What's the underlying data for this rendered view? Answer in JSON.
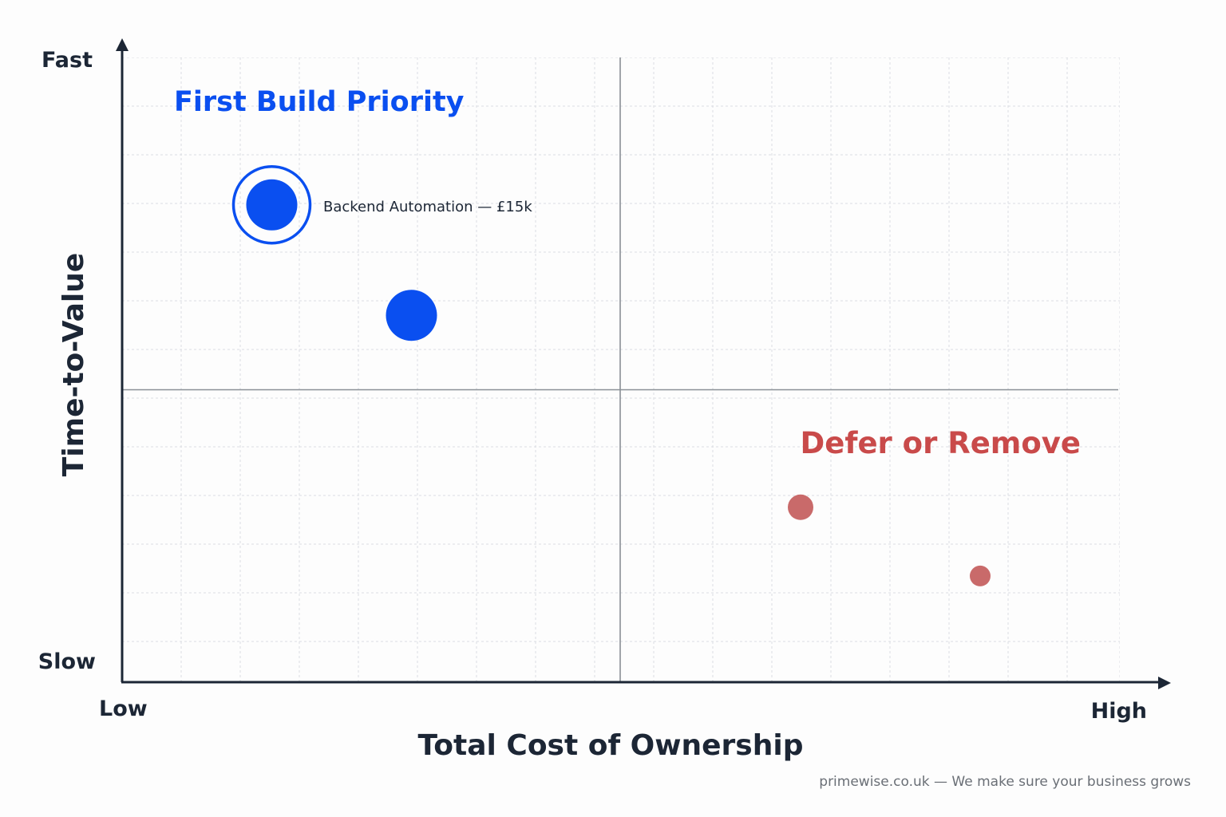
{
  "chart_data": {
    "type": "scatter",
    "xlabel": "Total Cost of Ownership",
    "ylabel": "Time-to-Value",
    "x_axis_ends": {
      "low": "Low",
      "high": "High"
    },
    "y_axis_ends": {
      "low": "Slow",
      "high": "Fast"
    },
    "xlim": [
      0,
      10
    ],
    "ylim": [
      0,
      10
    ],
    "grid": true,
    "quadrant_dividers": {
      "x": 5,
      "y": 5
    },
    "quadrant_labels": [
      {
        "text": "First Build Priority",
        "quadrant": "top-left",
        "color": "#0a4ff0"
      },
      {
        "text": "Defer or Remove",
        "quadrant": "bottom-right",
        "color": "#c94a4a"
      }
    ],
    "points": [
      {
        "x": 1.5,
        "y": 7.5,
        "size": "large",
        "color": "#0a4ff0",
        "highlighted": true,
        "label": "Backend Automation — £15k"
      },
      {
        "x": 2.9,
        "y": 6.0,
        "size": "large",
        "color": "#0a4ff0",
        "highlighted": false,
        "label": ""
      },
      {
        "x": 6.8,
        "y": 2.8,
        "size": "small",
        "color": "#c96a6a",
        "highlighted": false,
        "label": ""
      },
      {
        "x": 8.6,
        "y": 1.7,
        "size": "smaller",
        "color": "#c96a6a",
        "highlighted": false,
        "label": ""
      }
    ]
  },
  "footer": {
    "text": "primewise.co.uk — We make sure your business grows"
  },
  "colors": {
    "axis": "#1c2635",
    "grid": "#dadde2",
    "divider": "#8a8f96"
  }
}
